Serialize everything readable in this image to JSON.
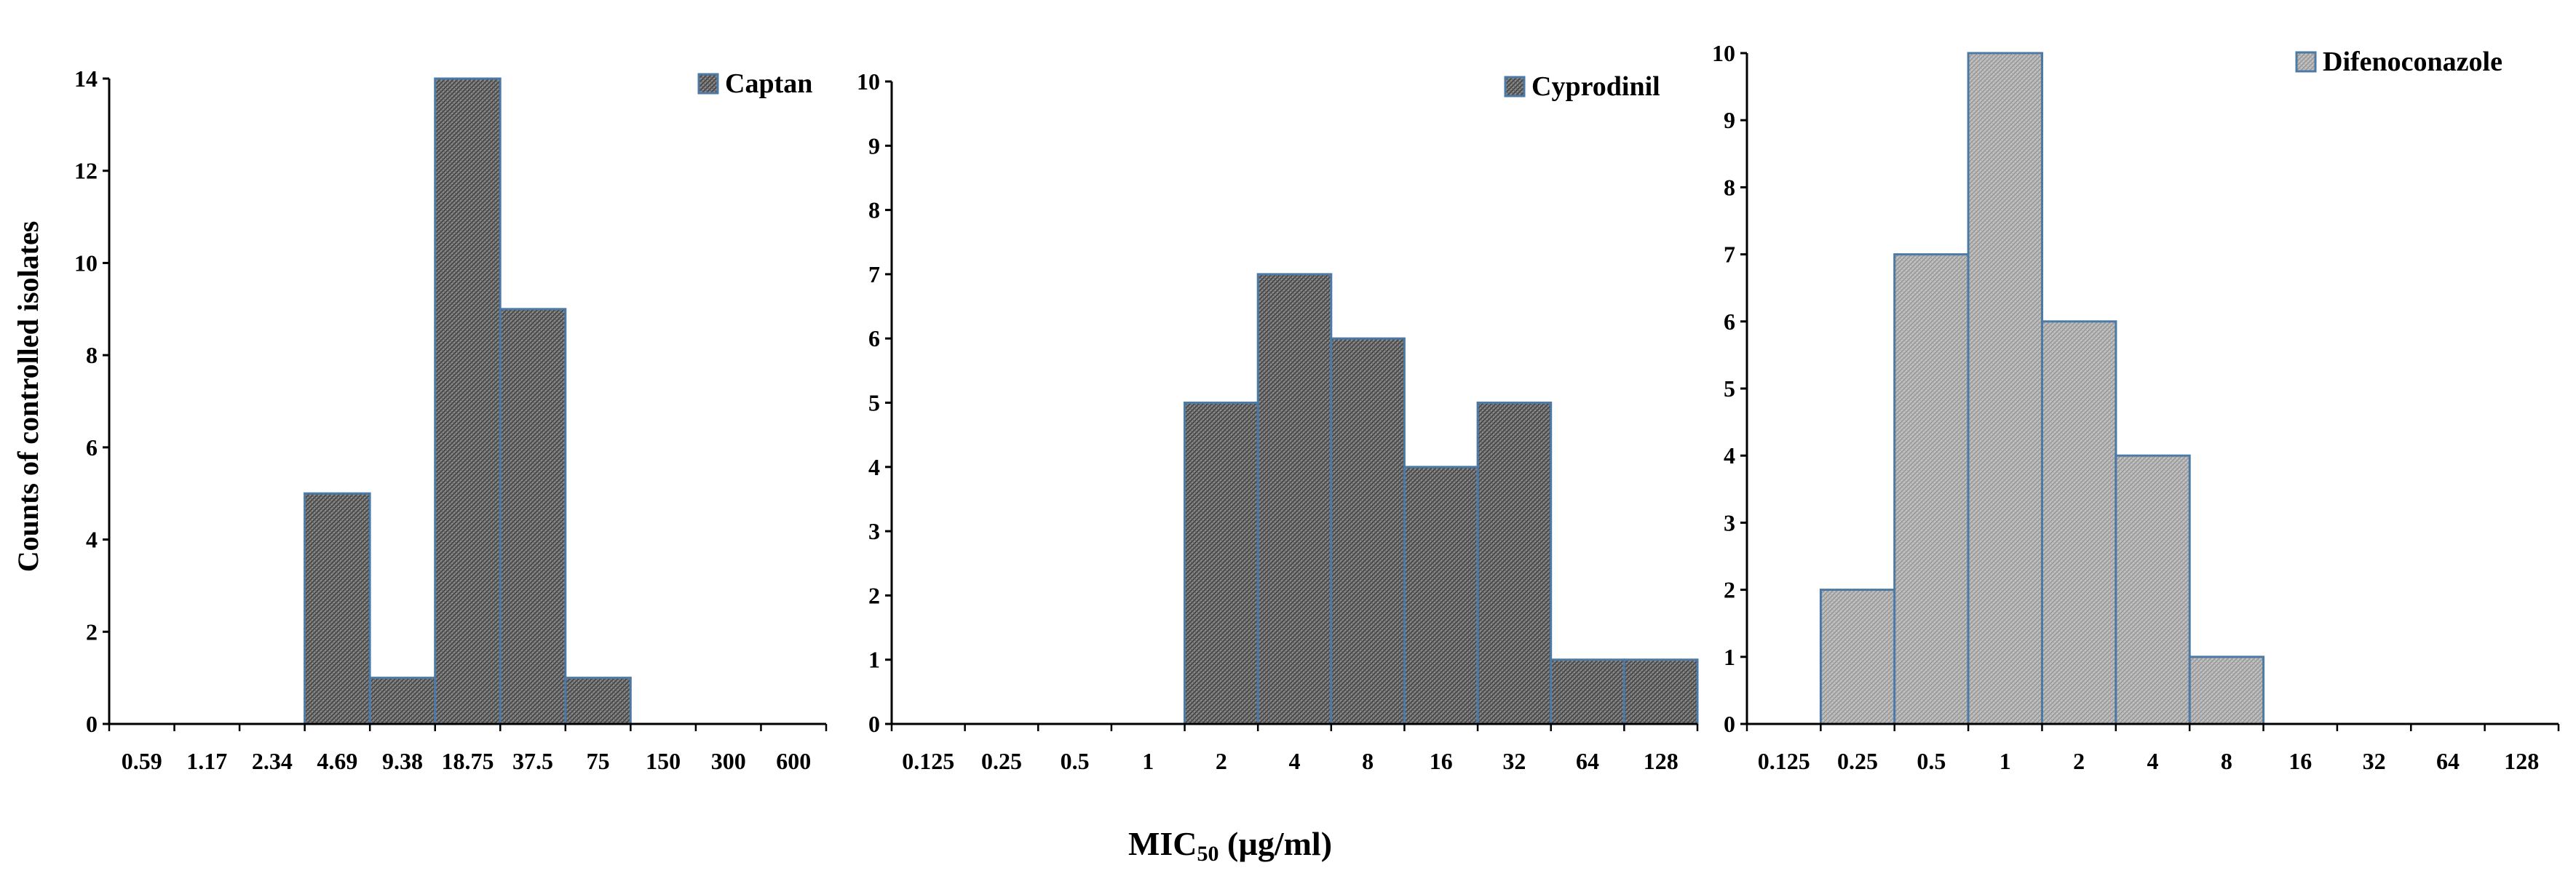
{
  "figure": {
    "y_label": "Counts of controlled isolates",
    "x_label_main": "MIC",
    "x_label_sub": "50",
    "x_label_unit": " (µg/ml)",
    "bar_dark": "#7d7d7d",
    "bar_light": "#b4b4b4",
    "bar_stroke": "#4c7aa6",
    "axis_color": "#000000"
  },
  "chart_data": [
    {
      "type": "bar",
      "legend": "Captan",
      "categories": [
        "0.59",
        "1.17",
        "2.34",
        "4.69",
        "9.38",
        "18.75",
        "37.5",
        "75",
        "150",
        "300",
        "600"
      ],
      "values": [
        0,
        0,
        0,
        5,
        1,
        14,
        9,
        1,
        0,
        0,
        0
      ],
      "yticks": [
        "0",
        "2",
        "4",
        "6",
        "8",
        "10",
        "12",
        "14"
      ],
      "ylim": [
        0,
        14
      ],
      "legend_position": "top-right",
      "fill": "dark"
    },
    {
      "type": "bar",
      "legend": "Cyprodinil",
      "categories": [
        "0.125",
        "0.25",
        "0.5",
        "1",
        "2",
        "4",
        "8",
        "16",
        "32",
        "64",
        "128"
      ],
      "values": [
        0,
        0,
        0,
        0,
        5,
        7,
        6,
        4,
        5,
        1,
        1
      ],
      "yticks": [
        "0",
        "1",
        "2",
        "3",
        "4",
        "5",
        "6",
        "7",
        "8",
        "9",
        "10"
      ],
      "ylim": [
        0,
        10
      ],
      "legend_position": "top-right",
      "fill": "dark"
    },
    {
      "type": "bar",
      "legend": "Difenoconazole",
      "categories": [
        "0.125",
        "0.25",
        "0.5",
        "1",
        "2",
        "4",
        "8",
        "16",
        "32",
        "64",
        "128"
      ],
      "values": [
        0,
        2,
        7,
        10,
        6,
        4,
        1,
        0,
        0,
        0,
        0
      ],
      "yticks": [
        "0",
        "1",
        "2",
        "3",
        "4",
        "5",
        "6",
        "7",
        "8",
        "9",
        "10"
      ],
      "ylim": [
        0,
        10
      ],
      "legend_position": "top-right",
      "fill": "light"
    }
  ]
}
